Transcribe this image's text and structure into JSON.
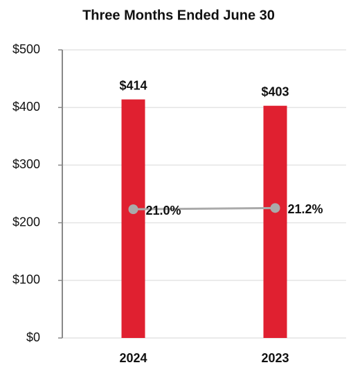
{
  "chart_data": {
    "type": "bar",
    "title": "Three Months Ended June 30",
    "categories": [
      "2024",
      "2023"
    ],
    "series": [
      {
        "type": "bar",
        "color": "#e02030",
        "values": [
          414,
          403
        ],
        "value_labels": [
          "$414",
          "$403"
        ]
      },
      {
        "type": "line",
        "axis": "y2",
        "color": "#aaaaaa",
        "values": [
          21.0,
          21.2
        ],
        "value_labels": [
          "21.0%",
          "21.2%"
        ]
      }
    ],
    "ylim": [
      0,
      500
    ],
    "yticks": [
      {
        "value": 0,
        "label": "$0"
      },
      {
        "value": 100,
        "label": "$100"
      },
      {
        "value": 200,
        "label": "$200"
      },
      {
        "value": 300,
        "label": "$300"
      },
      {
        "value": 400,
        "label": "$400"
      },
      {
        "value": 500,
        "label": "$500"
      }
    ],
    "y2lim": [
      0,
      47
    ],
    "grid": true
  }
}
